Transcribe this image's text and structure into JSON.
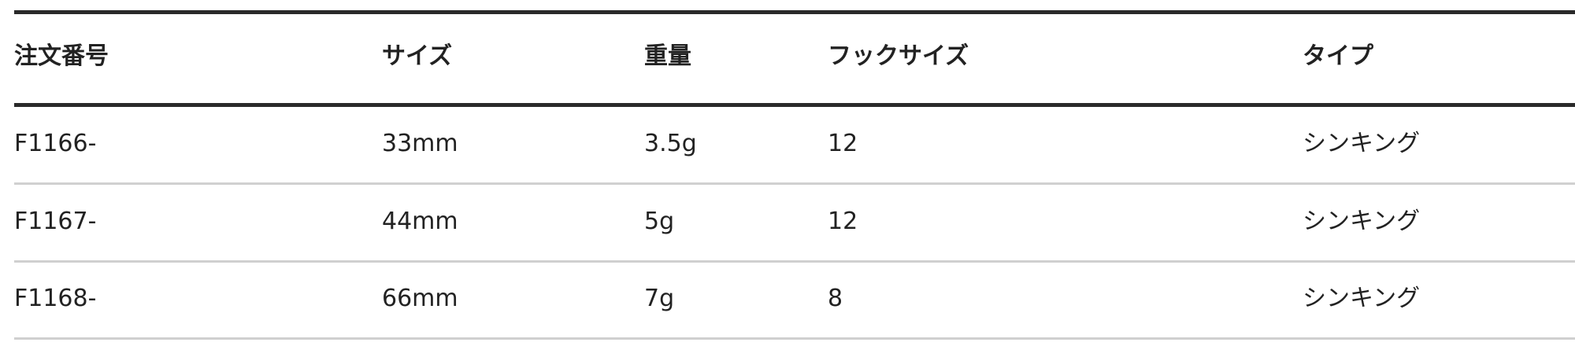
{
  "table": {
    "headers": [
      "注文番号",
      "サイズ",
      "重量",
      "フックサイズ",
      "タイプ"
    ],
    "rows": [
      [
        "F1166-",
        "33mm",
        "3.5g",
        "12",
        "シンキング"
      ],
      [
        "F1167-",
        "44mm",
        "5g",
        "12",
        "シンキング"
      ],
      [
        "F1168-",
        "66mm",
        "7g",
        "8",
        "シンキング"
      ]
    ]
  }
}
